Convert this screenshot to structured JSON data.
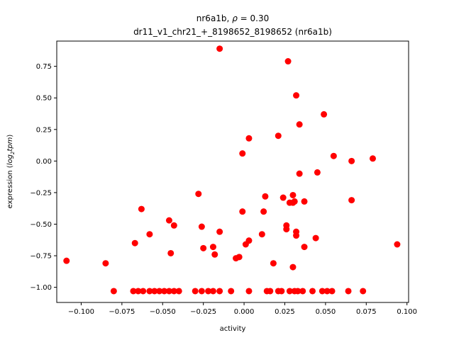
{
  "chart_data": {
    "type": "scatter",
    "title_line1_prefix": "nr6a1b, ",
    "title_line1_rho_symbol": "ρ",
    "title_line1_rho_suffix": " = 0.30",
    "title_line2": "dr11_v1_chr21_+_8198652_8198652 (nr6a1b)",
    "xlabel": "activity",
    "ylabel_prefix": "expression (",
    "ylabel_log": "log",
    "ylabel_sub": "2",
    "ylabel_tpm": "tpm",
    "ylabel_suffix": ")",
    "xlim": [
      -0.115,
      0.101
    ],
    "ylim": [
      -1.12,
      0.95
    ],
    "xticks": [
      -0.1,
      -0.075,
      -0.05,
      -0.025,
      0.0,
      0.025,
      0.05,
      0.075,
      0.1
    ],
    "xtick_labels": [
      "−0.100",
      "−0.075",
      "−0.050",
      "−0.025",
      "0.000",
      "0.025",
      "0.050",
      "0.075",
      "0.100"
    ],
    "yticks": [
      -1.0,
      -0.75,
      -0.5,
      -0.25,
      0.0,
      0.25,
      0.5,
      0.75
    ],
    "ytick_labels": [
      "−1.00",
      "−0.75",
      "−0.50",
      "−0.25",
      "0.00",
      "0.25",
      "0.50",
      "0.75"
    ],
    "marker_color": "#ff0000",
    "points": [
      {
        "x": -0.015,
        "y": 0.89
      },
      {
        "x": 0.027,
        "y": 0.79
      },
      {
        "x": 0.032,
        "y": 0.52
      },
      {
        "x": 0.049,
        "y": 0.37
      },
      {
        "x": 0.034,
        "y": 0.29
      },
      {
        "x": 0.021,
        "y": 0.2
      },
      {
        "x": 0.003,
        "y": 0.18
      },
      {
        "x": -0.001,
        "y": 0.06
      },
      {
        "x": 0.055,
        "y": 0.04
      },
      {
        "x": 0.079,
        "y": 0.02
      },
      {
        "x": 0.066,
        "y": 0.0
      },
      {
        "x": 0.034,
        "y": -0.1
      },
      {
        "x": 0.045,
        "y": -0.09
      },
      {
        "x": -0.028,
        "y": -0.26
      },
      {
        "x": 0.013,
        "y": -0.28
      },
      {
        "x": 0.024,
        "y": -0.29
      },
      {
        "x": 0.03,
        "y": -0.27
      },
      {
        "x": 0.028,
        "y": -0.33
      },
      {
        "x": 0.03,
        "y": -0.33
      },
      {
        "x": 0.031,
        "y": -0.32
      },
      {
        "x": 0.037,
        "y": -0.32
      },
      {
        "x": 0.066,
        "y": -0.31
      },
      {
        "x": -0.063,
        "y": -0.38
      },
      {
        "x": -0.001,
        "y": -0.4
      },
      {
        "x": 0.012,
        "y": -0.4
      },
      {
        "x": -0.046,
        "y": -0.47
      },
      {
        "x": -0.043,
        "y": -0.51
      },
      {
        "x": -0.026,
        "y": -0.52
      },
      {
        "x": 0.026,
        "y": -0.51
      },
      {
        "x": 0.026,
        "y": -0.54
      },
      {
        "x": -0.015,
        "y": -0.56
      },
      {
        "x": -0.058,
        "y": -0.58
      },
      {
        "x": 0.011,
        "y": -0.58
      },
      {
        "x": 0.032,
        "y": -0.56
      },
      {
        "x": 0.032,
        "y": -0.59
      },
      {
        "x": 0.044,
        "y": -0.61
      },
      {
        "x": 0.003,
        "y": -0.63
      },
      {
        "x": -0.067,
        "y": -0.65
      },
      {
        "x": 0.001,
        "y": -0.66
      },
      {
        "x": 0.094,
        "y": -0.66
      },
      {
        "x": -0.019,
        "y": -0.68
      },
      {
        "x": -0.025,
        "y": -0.69
      },
      {
        "x": 0.037,
        "y": -0.68
      },
      {
        "x": -0.045,
        "y": -0.73
      },
      {
        "x": -0.018,
        "y": -0.74
      },
      {
        "x": -0.003,
        "y": -0.76
      },
      {
        "x": -0.005,
        "y": -0.77
      },
      {
        "x": -0.109,
        "y": -0.79
      },
      {
        "x": -0.085,
        "y": -0.81
      },
      {
        "x": 0.018,
        "y": -0.81
      },
      {
        "x": 0.03,
        "y": -0.84
      },
      {
        "x": -0.08,
        "y": -1.03
      },
      {
        "x": -0.068,
        "y": -1.03
      },
      {
        "x": -0.065,
        "y": -1.03
      },
      {
        "x": -0.062,
        "y": -1.03
      },
      {
        "x": -0.058,
        "y": -1.03
      },
      {
        "x": -0.055,
        "y": -1.03
      },
      {
        "x": -0.052,
        "y": -1.03
      },
      {
        "x": -0.049,
        "y": -1.03
      },
      {
        "x": -0.046,
        "y": -1.03
      },
      {
        "x": -0.043,
        "y": -1.03
      },
      {
        "x": -0.04,
        "y": -1.03
      },
      {
        "x": -0.03,
        "y": -1.03
      },
      {
        "x": -0.026,
        "y": -1.03
      },
      {
        "x": -0.022,
        "y": -1.03
      },
      {
        "x": -0.019,
        "y": -1.03
      },
      {
        "x": -0.015,
        "y": -1.03
      },
      {
        "x": -0.008,
        "y": -1.03
      },
      {
        "x": 0.003,
        "y": -1.03
      },
      {
        "x": 0.014,
        "y": -1.03
      },
      {
        "x": 0.016,
        "y": -1.03
      },
      {
        "x": 0.021,
        "y": -1.03
      },
      {
        "x": 0.023,
        "y": -1.03
      },
      {
        "x": 0.028,
        "y": -1.03
      },
      {
        "x": 0.031,
        "y": -1.03
      },
      {
        "x": 0.033,
        "y": -1.03
      },
      {
        "x": 0.036,
        "y": -1.03
      },
      {
        "x": 0.042,
        "y": -1.03
      },
      {
        "x": 0.048,
        "y": -1.03
      },
      {
        "x": 0.051,
        "y": -1.03
      },
      {
        "x": 0.054,
        "y": -1.03
      },
      {
        "x": 0.064,
        "y": -1.03
      },
      {
        "x": 0.073,
        "y": -1.03
      }
    ]
  }
}
